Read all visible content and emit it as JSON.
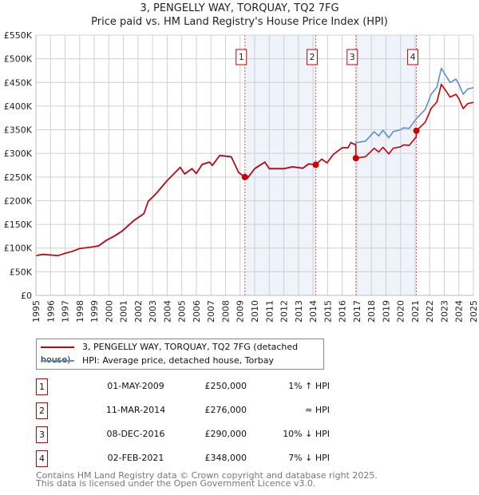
{
  "chart_data": {
    "type": "line",
    "title": "3, PENGELLY WAY, TORQUAY, TQ2 7FG",
    "subtitle": "Price paid vs. HM Land Registry's House Price Index (HPI)",
    "xlim": [
      1995,
      2025
    ],
    "ylim": [
      0,
      550000
    ],
    "x_ticks": [
      "1995",
      "1996",
      "1997",
      "1998",
      "1999",
      "2000",
      "2001",
      "2002",
      "2003",
      "2004",
      "2005",
      "2006",
      "2007",
      "2008",
      "2009",
      "2010",
      "2011",
      "2012",
      "2013",
      "2014",
      "2015",
      "2016",
      "2017",
      "2018",
      "2019",
      "2020",
      "2021",
      "2022",
      "2023",
      "2024",
      "2025"
    ],
    "y_ticks": [
      {
        "v": 0,
        "label": "£0"
      },
      {
        "v": 50000,
        "label": "£50K"
      },
      {
        "v": 100000,
        "label": "£100K"
      },
      {
        "v": 150000,
        "label": "£150K"
      },
      {
        "v": 200000,
        "label": "£200K"
      },
      {
        "v": 250000,
        "label": "£250K"
      },
      {
        "v": 300000,
        "label": "£300K"
      },
      {
        "v": 350000,
        "label": "£350K"
      },
      {
        "v": 400000,
        "label": "£400K"
      },
      {
        "v": 450000,
        "label": "£450K"
      },
      {
        "v": 500000,
        "label": "£500K"
      },
      {
        "v": 550000,
        "label": "£550K"
      }
    ],
    "grid": true,
    "series": [
      {
        "name": "HPI: Average price, detached house, Torbay",
        "color": "#5b8fd0",
        "points": [
          [
            1995.0,
            84
          ],
          [
            1995.5,
            86
          ],
          [
            1996.5,
            84
          ],
          [
            1997.0,
            89
          ],
          [
            1997.5,
            93
          ],
          [
            1998.0,
            99
          ],
          [
            1998.8,
            102
          ],
          [
            1999.3,
            104
          ],
          [
            1999.8,
            115
          ],
          [
            2000.4,
            125
          ],
          [
            2000.9,
            135
          ],
          [
            2001.3,
            146
          ],
          [
            2001.7,
            157
          ],
          [
            2002.4,
            172
          ],
          [
            2002.7,
            198
          ],
          [
            2003.2,
            213
          ],
          [
            2004.0,
            242
          ],
          [
            2004.9,
            270
          ],
          [
            2005.2,
            256
          ],
          [
            2005.7,
            267
          ],
          [
            2006.0,
            257
          ],
          [
            2006.4,
            276
          ],
          [
            2006.9,
            281
          ],
          [
            2007.1,
            274
          ],
          [
            2007.6,
            295
          ],
          [
            2008.4,
            292
          ],
          [
            2008.9,
            259
          ],
          [
            2009.5,
            247
          ],
          [
            2010.0,
            267
          ],
          [
            2010.7,
            281
          ],
          [
            2011.0,
            267
          ],
          [
            2011.5,
            267
          ],
          [
            2012.0,
            267
          ],
          [
            2012.6,
            271
          ],
          [
            2013.3,
            268
          ],
          [
            2013.7,
            277
          ],
          [
            2014.2,
            277
          ],
          [
            2014.6,
            288
          ],
          [
            2014.96,
            280
          ],
          [
            2015.4,
            298
          ],
          [
            2016.0,
            312
          ],
          [
            2016.4,
            312
          ],
          [
            2016.6,
            323
          ],
          [
            2016.85,
            319
          ],
          [
            2017.0,
            323
          ],
          [
            2017.6,
            326
          ],
          [
            2018.2,
            346
          ],
          [
            2018.5,
            337
          ],
          [
            2018.8,
            349
          ],
          [
            2019.2,
            333
          ],
          [
            2019.5,
            346
          ],
          [
            2020.0,
            350
          ],
          [
            2020.2,
            354
          ],
          [
            2020.6,
            353
          ],
          [
            2021.1,
            374
          ],
          [
            2021.7,
            393
          ],
          [
            2022.1,
            425
          ],
          [
            2022.5,
            440
          ],
          [
            2022.8,
            480
          ],
          [
            2023.4,
            450
          ],
          [
            2023.8,
            457
          ],
          [
            2024.0,
            447
          ],
          [
            2024.3,
            425
          ],
          [
            2024.6,
            436
          ],
          [
            2025.0,
            439
          ]
        ]
      },
      {
        "name": "3, PENGELLY WAY, TORQUAY, TQ2 7FG (detached house)",
        "color": "#cc0000",
        "points": [
          [
            1995.0,
            84
          ],
          [
            1995.5,
            87
          ],
          [
            1996.5,
            84
          ],
          [
            1997.0,
            89
          ],
          [
            1997.5,
            93
          ],
          [
            1998.0,
            99
          ],
          [
            1998.8,
            102
          ],
          [
            1999.3,
            105
          ],
          [
            1999.8,
            116
          ],
          [
            2000.4,
            126
          ],
          [
            2000.9,
            136
          ],
          [
            2001.3,
            147
          ],
          [
            2001.7,
            158
          ],
          [
            2002.4,
            173
          ],
          [
            2002.7,
            199
          ],
          [
            2003.2,
            214
          ],
          [
            2004.0,
            243
          ],
          [
            2004.9,
            271
          ],
          [
            2005.2,
            257
          ],
          [
            2005.7,
            268
          ],
          [
            2006.0,
            258
          ],
          [
            2006.4,
            277
          ],
          [
            2006.9,
            282
          ],
          [
            2007.1,
            275
          ],
          [
            2007.6,
            296
          ],
          [
            2008.4,
            293
          ],
          [
            2008.9,
            260
          ],
          [
            2009.33,
            250
          ],
          [
            2009.5,
            248
          ],
          [
            2010.0,
            268
          ],
          [
            2010.7,
            282
          ],
          [
            2011.0,
            268
          ],
          [
            2011.5,
            268
          ],
          [
            2012.0,
            268
          ],
          [
            2012.6,
            272
          ],
          [
            2013.3,
            269
          ],
          [
            2013.7,
            278
          ],
          [
            2014.19,
            276
          ],
          [
            2014.6,
            288
          ],
          [
            2014.96,
            280
          ],
          [
            2015.4,
            298
          ],
          [
            2016.0,
            312
          ],
          [
            2016.4,
            312
          ],
          [
            2016.6,
            323
          ],
          [
            2016.85,
            319
          ],
          [
            2016.93,
            318
          ],
          [
            2016.94,
            290
          ],
          [
            2017.6,
            293
          ],
          [
            2018.2,
            311
          ],
          [
            2018.5,
            303
          ],
          [
            2018.8,
            313
          ],
          [
            2019.2,
            299
          ],
          [
            2019.5,
            311
          ],
          [
            2020.0,
            314
          ],
          [
            2020.2,
            318
          ],
          [
            2020.6,
            317
          ],
          [
            2021.08,
            335
          ],
          [
            2021.09,
            348
          ],
          [
            2021.7,
            366
          ],
          [
            2022.1,
            395
          ],
          [
            2022.5,
            409
          ],
          [
            2022.8,
            446
          ],
          [
            2023.4,
            419
          ],
          [
            2023.8,
            425
          ],
          [
            2024.0,
            416
          ],
          [
            2024.3,
            395
          ],
          [
            2024.6,
            405
          ],
          [
            2025.0,
            408
          ]
        ]
      }
    ],
    "sales": [
      {
        "n": "1",
        "x": 2009.33,
        "value": 250
      },
      {
        "n": "2",
        "x": 2014.19,
        "value": 276
      },
      {
        "n": "3",
        "x": 2016.94,
        "value": 290
      },
      {
        "n": "4",
        "x": 2021.09,
        "value": 348
      }
    ],
    "shaded": [
      [
        2009.33,
        2014.19
      ],
      [
        2016.94,
        2021.09
      ]
    ],
    "legend_position": "below"
  },
  "legend": {
    "property": "3, PENGELLY WAY, TORQUAY, TQ2 7FG (detached house)",
    "hpi": "HPI: Average price, detached house, Torbay"
  },
  "transactions": [
    {
      "n": "1",
      "date": "01-MAY-2009",
      "price": "£250,000",
      "hpi": "1% ↑ HPI"
    },
    {
      "n": "2",
      "date": "11-MAR-2014",
      "price": "£276,000",
      "hpi": "≈ HPI"
    },
    {
      "n": "3",
      "date": "08-DEC-2016",
      "price": "£290,000",
      "hpi": "10% ↓ HPI"
    },
    {
      "n": "4",
      "date": "02-FEB-2021",
      "price": "£348,000",
      "hpi": "7% ↓ HPI"
    }
  ],
  "footer": {
    "line1": "Contains HM Land Registry data © Crown copyright and database right 2025.",
    "line2": "This data is licensed under the Open Government Licence v3.0."
  }
}
